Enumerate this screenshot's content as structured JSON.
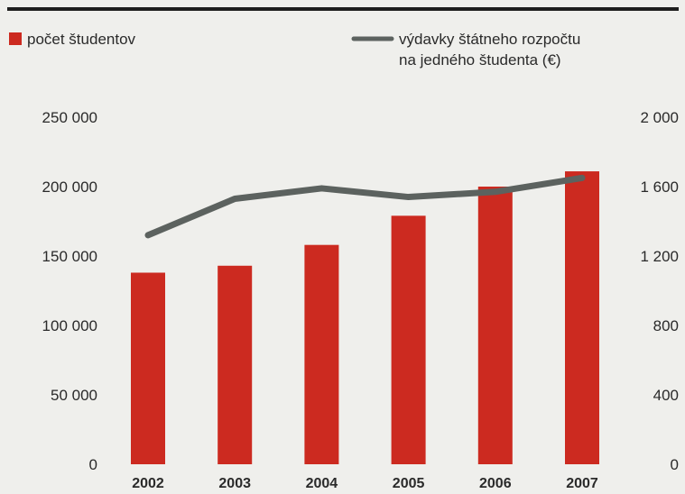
{
  "chart_data": {
    "type": "bar",
    "categories": [
      "2002",
      "2003",
      "2004",
      "2005",
      "2006",
      "2007"
    ],
    "series": [
      {
        "name": "počet študentov",
        "type": "bar",
        "axis": "left",
        "color": "#cc2a20",
        "values": [
          138000,
          143000,
          158000,
          179000,
          200000,
          211000
        ]
      },
      {
        "name": "výdavky štátneho rozpočtu na jedného študenta (€)",
        "name_lines": [
          "výdavky štátneho rozpočtu",
          "na jedného študenta (€)"
        ],
        "type": "line",
        "axis": "right",
        "color": "#5c625f",
        "values": [
          1320,
          1530,
          1590,
          1540,
          1570,
          1650
        ]
      }
    ],
    "y_left": {
      "ylim": [
        0,
        250000
      ],
      "ticks": [
        0,
        50000,
        100000,
        150000,
        200000,
        250000
      ],
      "tick_labels": [
        "0",
        "50 000",
        "100 000",
        "150 000",
        "200 000",
        "250 000"
      ]
    },
    "y_right": {
      "ylim": [
        0,
        2000
      ],
      "ticks": [
        0,
        400,
        800,
        1200,
        1600,
        2000
      ],
      "tick_labels": [
        "0",
        "400",
        "800",
        "1 200",
        "1 600",
        "2 000"
      ]
    },
    "legend_position": "top",
    "grid": false
  }
}
